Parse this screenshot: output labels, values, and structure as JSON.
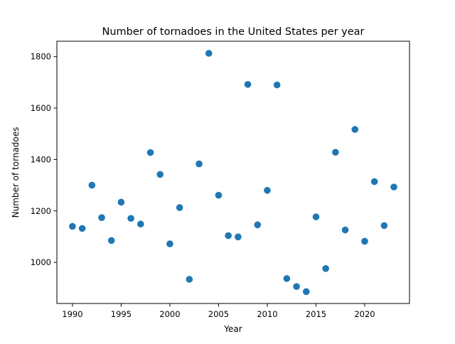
{
  "chart_data": {
    "type": "scatter",
    "title": "Number of tornadoes in the United States per year",
    "xlabel": "Year",
    "ylabel": "Number of tornadoes",
    "xlim": [
      1988.4,
      2024.6
    ],
    "ylim": [
      840,
      1860
    ],
    "x_ticks": [
      1990,
      1995,
      2000,
      2005,
      2010,
      2015,
      2020
    ],
    "y_ticks": [
      1000,
      1200,
      1400,
      1600,
      1800
    ],
    "x_tick_labels": [
      "1990",
      "1995",
      "2000",
      "2005",
      "2010",
      "2015",
      "2020"
    ],
    "y_tick_labels": [
      "1000",
      "1200",
      "1400",
      "1600",
      "1800"
    ],
    "grid": false,
    "marker_color": "#1f77b4",
    "points": [
      {
        "x": 1990,
        "y": 1140
      },
      {
        "x": 1991,
        "y": 1132
      },
      {
        "x": 1992,
        "y": 1300
      },
      {
        "x": 1993,
        "y": 1174
      },
      {
        "x": 1994,
        "y": 1085
      },
      {
        "x": 1995,
        "y": 1234
      },
      {
        "x": 1996,
        "y": 1171
      },
      {
        "x": 1997,
        "y": 1149
      },
      {
        "x": 1998,
        "y": 1427
      },
      {
        "x": 1999,
        "y": 1342
      },
      {
        "x": 2000,
        "y": 1072
      },
      {
        "x": 2001,
        "y": 1213
      },
      {
        "x": 2002,
        "y": 934
      },
      {
        "x": 2003,
        "y": 1383
      },
      {
        "x": 2004,
        "y": 1813
      },
      {
        "x": 2005,
        "y": 1261
      },
      {
        "x": 2006,
        "y": 1104
      },
      {
        "x": 2007,
        "y": 1099
      },
      {
        "x": 2008,
        "y": 1692
      },
      {
        "x": 2009,
        "y": 1146
      },
      {
        "x": 2010,
        "y": 1280
      },
      {
        "x": 2011,
        "y": 1690
      },
      {
        "x": 2012,
        "y": 937
      },
      {
        "x": 2013,
        "y": 906
      },
      {
        "x": 2014,
        "y": 886
      },
      {
        "x": 2015,
        "y": 1177
      },
      {
        "x": 2016,
        "y": 976
      },
      {
        "x": 2017,
        "y": 1428
      },
      {
        "x": 2018,
        "y": 1126
      },
      {
        "x": 2019,
        "y": 1517
      },
      {
        "x": 2020,
        "y": 1082
      },
      {
        "x": 2021,
        "y": 1314
      },
      {
        "x": 2022,
        "y": 1143
      },
      {
        "x": 2023,
        "y": 1293
      }
    ]
  }
}
